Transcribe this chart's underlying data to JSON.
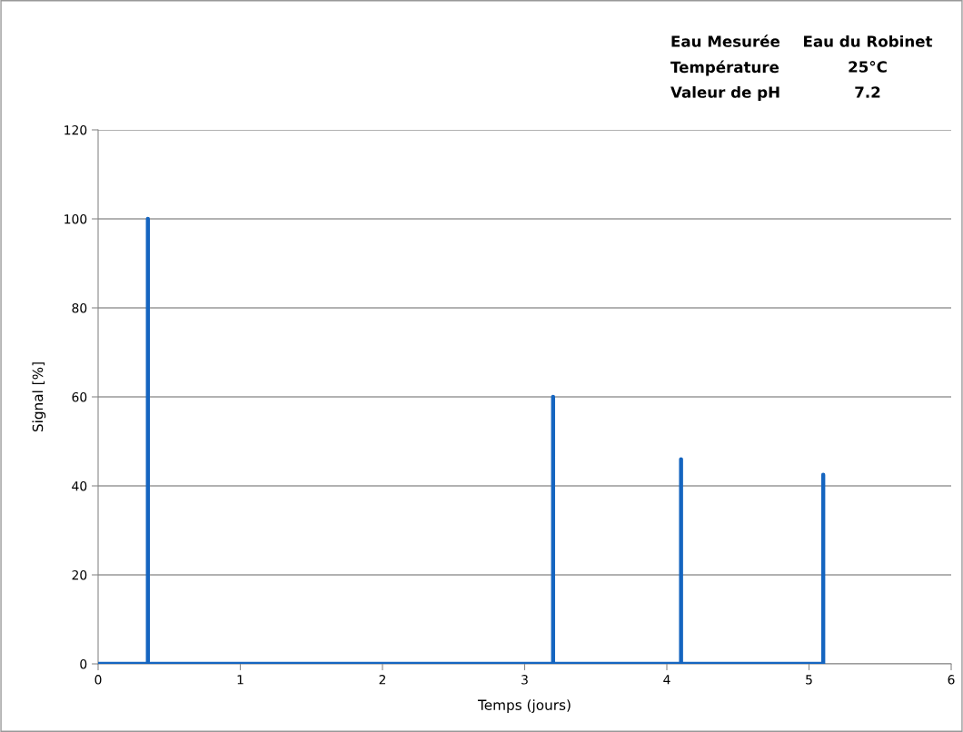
{
  "chart_data": {
    "type": "line",
    "xlabel": "Temps (jours)",
    "ylabel": "Signal [%]",
    "annotations": [
      "Eau Mesurée",
      "Eau du Robinet",
      "Température",
      "25°C",
      "Valeur de pH",
      "7.2"
    ],
    "series": [
      {
        "color": "#1565c0",
        "x": [
          0,
          0.35,
          0.35,
          0.35,
          3.2,
          3.2,
          3.2,
          4.1,
          4.1,
          4.1,
          5.1,
          5.1,
          5.1
        ],
        "values": [
          0,
          0,
          100,
          0,
          0,
          60,
          0,
          0,
          46,
          0,
          0,
          42.5,
          0
        ]
      }
    ],
    "xlim": [
      0,
      6
    ],
    "xticks": [
      0,
      1,
      2,
      3,
      4,
      5,
      6
    ],
    "ylim": [
      0,
      120
    ],
    "yticks": [
      0,
      20,
      40,
      60,
      80,
      100,
      120
    ],
    "grid": "y",
    "marker": "none",
    "line_style": "solid"
  }
}
